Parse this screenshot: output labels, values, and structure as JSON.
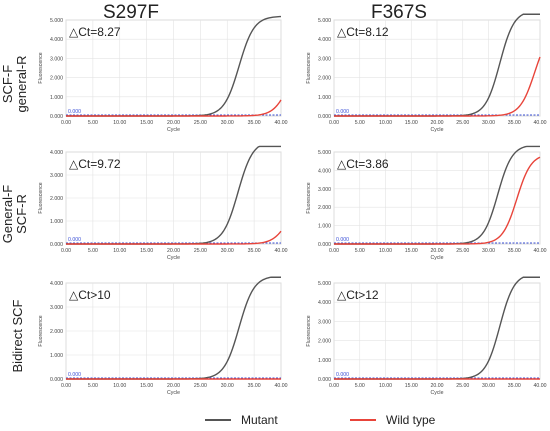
{
  "columns": [
    "S297F",
    "F367S"
  ],
  "rows": [
    [
      "SCF-F",
      "general-R"
    ],
    [
      "General-F",
      "SCF-R"
    ],
    [
      "Bidirect SCF"
    ]
  ],
  "legend": [
    {
      "name": "Mutant",
      "color": "#555555"
    },
    {
      "name": "Wild type",
      "color": "#e8443a"
    }
  ],
  "chart_data": [
    {
      "type": "line",
      "panel": "S297F / SCF-F general-R",
      "annotation": "△Ct=8.27",
      "threshold_label": "0.000",
      "xlabel": "Cycle",
      "ylabel": "Fluorescence",
      "xlim": [
        0,
        40
      ],
      "ylim": [
        0,
        5.0
      ],
      "xticks": [
        "0.00",
        "5.00",
        "10.00",
        "15.00",
        "20.00",
        "25.00",
        "30.00",
        "35.00",
        "40.00"
      ],
      "yticks": [
        "0.000",
        "1.000",
        "2.000",
        "3.000",
        "4.000",
        "5.000"
      ],
      "series": [
        {
          "name": "Mutant",
          "midpoint": 32.2,
          "plateau": 5.2,
          "slope": 0.72
        },
        {
          "name": "Wild type",
          "midpoint": 41.5,
          "plateau": 3.3,
          "slope": 0.72
        }
      ]
    },
    {
      "type": "line",
      "panel": "F367S / SCF-F general-R",
      "annotation": "△Ct=8.12",
      "threshold_label": "0.000",
      "xlabel": "Cycle",
      "ylabel": "Fluorescence",
      "xlim": [
        0,
        40
      ],
      "ylim": [
        0,
        5.0
      ],
      "xticks": [
        "0.00",
        "5.00",
        "10.00",
        "15.00",
        "20.00",
        "25.00",
        "30.00",
        "35.00",
        "40.00"
      ],
      "yticks": [
        "0.000",
        "1.000",
        "2.000",
        "3.000",
        "4.000",
        "5.000"
      ],
      "series": [
        {
          "name": "Mutant",
          "midpoint": 32.2,
          "plateau": 5.5,
          "slope": 0.72
        },
        {
          "name": "Wild type",
          "midpoint": 39.0,
          "plateau": 4.6,
          "slope": 0.7
        }
      ]
    },
    {
      "type": "line",
      "panel": "S297F / General-F SCF-R",
      "annotation": "△Ct=9.72",
      "threshold_label": "0.000",
      "xlabel": "Cycle",
      "ylabel": "Fluorescence",
      "xlim": [
        0,
        40
      ],
      "ylim": [
        0,
        4.0
      ],
      "xticks": [
        "0.00",
        "5.00",
        "10.00",
        "15.00",
        "20.00",
        "25.00",
        "30.00",
        "35.00",
        "40.00"
      ],
      "yticks": [
        "0.000",
        "1.000",
        "2.000",
        "3.000",
        "4.000"
      ],
      "series": [
        {
          "name": "Mutant",
          "midpoint": 32.0,
          "plateau": 4.5,
          "slope": 0.72
        },
        {
          "name": "Wild type",
          "midpoint": 41.5,
          "plateau": 2.2,
          "slope": 0.72
        }
      ]
    },
    {
      "type": "line",
      "panel": "F367S / General-F SCF-R",
      "annotation": "△Ct=3.86",
      "threshold_label": "0.000",
      "xlabel": "Cycle",
      "ylabel": "Fluorescence",
      "xlim": [
        0,
        40
      ],
      "ylim": [
        0,
        5.0
      ],
      "xticks": [
        "0.00",
        "5.00",
        "10.00",
        "15.00",
        "20.00",
        "25.00",
        "30.00",
        "35.00",
        "40.00"
      ],
      "yticks": [
        "0.000",
        "1.000",
        "2.000",
        "3.000",
        "4.000",
        "5.000"
      ],
      "series": [
        {
          "name": "Mutant",
          "midpoint": 31.8,
          "plateau": 5.4,
          "slope": 0.72
        },
        {
          "name": "Wild type",
          "midpoint": 35.5,
          "plateau": 4.9,
          "slope": 0.72
        }
      ]
    },
    {
      "type": "line",
      "panel": "S297F / Bidirect SCF",
      "annotation": "△Ct>10",
      "threshold_label": "0.000",
      "xlabel": "Cycle",
      "ylabel": "Fluorescence",
      "xlim": [
        0,
        40
      ],
      "ylim": [
        0,
        4.0
      ],
      "xticks": [
        "0.00",
        "5.00",
        "10.00",
        "15.00",
        "20.00",
        "25.00",
        "30.00",
        "35.00",
        "40.00"
      ],
      "yticks": [
        "0.000",
        "1.000",
        "2.000",
        "3.000",
        "4.000"
      ],
      "series": [
        {
          "name": "Mutant",
          "midpoint": 32.2,
          "plateau": 4.3,
          "slope": 0.72
        },
        {
          "name": "Wild type",
          "midpoint": 60,
          "plateau": 0.15,
          "slope": 0.3
        }
      ]
    },
    {
      "type": "line",
      "panel": "F367S / Bidirect SCF",
      "annotation": "△Ct>12",
      "threshold_label": "0.000",
      "xlabel": "Cycle",
      "ylabel": "Fluorescence",
      "xlim": [
        0,
        40
      ],
      "ylim": [
        0,
        5.0
      ],
      "xticks": [
        "0.00",
        "5.00",
        "10.00",
        "15.00",
        "20.00",
        "25.00",
        "30.00",
        "35.00",
        "40.00"
      ],
      "yticks": [
        "0.000",
        "1.000",
        "2.000",
        "3.000",
        "4.000",
        "5.000"
      ],
      "series": [
        {
          "name": "Mutant",
          "midpoint": 32.2,
          "plateau": 5.5,
          "slope": 0.72
        },
        {
          "name": "Wild type",
          "midpoint": 60,
          "plateau": 0.15,
          "slope": 0.3
        }
      ]
    }
  ]
}
